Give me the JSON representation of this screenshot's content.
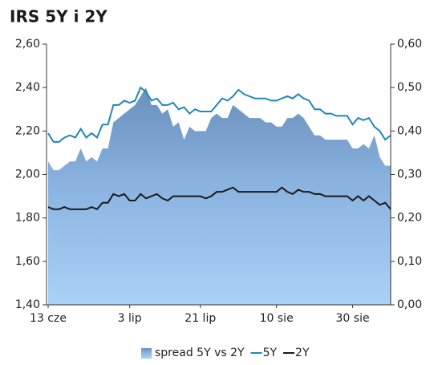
{
  "chart_data": {
    "type": "area-line",
    "title": "IRS 5Y i 2Y",
    "categories": [
      "13 cze",
      null,
      null,
      null,
      null,
      null,
      null,
      null,
      null,
      null,
      null,
      null,
      null,
      null,
      null,
      "3 lip",
      null,
      null,
      null,
      null,
      null,
      null,
      null,
      null,
      null,
      null,
      null,
      null,
      "21 lip",
      null,
      null,
      null,
      null,
      null,
      null,
      null,
      null,
      null,
      null,
      null,
      null,
      null,
      "10 sie",
      null,
      null,
      null,
      null,
      null,
      null,
      null,
      null,
      null,
      null,
      null,
      null,
      null,
      "30 sie",
      null,
      null,
      null,
      null,
      null,
      null,
      null
    ],
    "series": [
      {
        "name": "spread 5Y vs 2Y",
        "color": "#7096c2",
        "axis": "y2",
        "kind": "area",
        "values": [
          0.33,
          0.31,
          0.31,
          0.32,
          0.33,
          0.33,
          0.36,
          0.33,
          0.34,
          0.33,
          0.36,
          0.36,
          0.42,
          0.43,
          0.44,
          0.45,
          0.46,
          0.48,
          0.5,
          0.46,
          0.46,
          0.44,
          0.45,
          0.41,
          0.42,
          0.38,
          0.41,
          0.4,
          0.4,
          0.4,
          0.43,
          0.44,
          0.43,
          0.43,
          0.46,
          0.45,
          0.44,
          0.43,
          0.43,
          0.43,
          0.42,
          0.42,
          0.41,
          0.41,
          0.43,
          0.43,
          0.44,
          0.43,
          0.41,
          0.39,
          0.39,
          0.38,
          0.38,
          0.38,
          0.38,
          0.38,
          0.36,
          0.36,
          0.37,
          0.36,
          0.39,
          0.34,
          0.32,
          0.32
        ]
      },
      {
        "name": "5Y",
        "color": "#1f88b8",
        "kind": "line",
        "values": [
          2.19,
          2.15,
          2.15,
          2.17,
          2.18,
          2.17,
          2.21,
          2.17,
          2.19,
          2.17,
          2.23,
          2.23,
          2.32,
          2.32,
          2.34,
          2.33,
          2.34,
          2.4,
          2.38,
          2.34,
          2.35,
          2.32,
          2.32,
          2.33,
          2.3,
          2.31,
          2.28,
          2.3,
          2.29,
          2.29,
          2.29,
          2.32,
          2.35,
          2.34,
          2.36,
          2.39,
          2.37,
          2.36,
          2.35,
          2.35,
          2.35,
          2.34,
          2.34,
          2.35,
          2.36,
          2.35,
          2.37,
          2.35,
          2.34,
          2.3,
          2.3,
          2.28,
          2.28,
          2.27,
          2.27,
          2.27,
          2.23,
          2.26,
          2.25,
          2.26,
          2.22,
          2.2,
          2.16,
          2.18
        ]
      },
      {
        "name": "2Y",
        "color": "#1a1a1a",
        "kind": "line",
        "values": [
          1.85,
          1.84,
          1.84,
          1.85,
          1.84,
          1.84,
          1.84,
          1.84,
          1.85,
          1.84,
          1.87,
          1.87,
          1.91,
          1.9,
          1.91,
          1.88,
          1.88,
          1.91,
          1.89,
          1.9,
          1.91,
          1.89,
          1.88,
          1.9,
          1.9,
          1.9,
          1.9,
          1.9,
          1.9,
          1.89,
          1.9,
          1.92,
          1.92,
          1.93,
          1.94,
          1.92,
          1.92,
          1.92,
          1.92,
          1.92,
          1.92,
          1.92,
          1.92,
          1.94,
          1.92,
          1.91,
          1.93,
          1.92,
          1.92,
          1.91,
          1.91,
          1.9,
          1.9,
          1.9,
          1.9,
          1.9,
          1.88,
          1.9,
          1.88,
          1.9,
          1.88,
          1.86,
          1.87,
          1.84
        ]
      }
    ],
    "ylim": [
      1.4,
      2.6
    ],
    "yticks": [
      {
        "value": 1.4,
        "label": "1,40"
      },
      {
        "value": 1.6,
        "label": "1,60"
      },
      {
        "value": 1.8,
        "label": "1,80"
      },
      {
        "value": 2.0,
        "label": "2,00"
      },
      {
        "value": 2.2,
        "label": "2,20"
      },
      {
        "value": 2.4,
        "label": "2,40"
      },
      {
        "value": 2.6,
        "label": "2,60"
      }
    ],
    "y2lim": [
      0,
      0.6
    ],
    "y2ticks": [
      {
        "value": 0,
        "label": "0,00"
      },
      {
        "value": 0.1,
        "label": "0,10"
      },
      {
        "value": 0.2,
        "label": "0,20"
      },
      {
        "value": 0.3,
        "label": "0,30"
      },
      {
        "value": 0.4,
        "label": "0,40"
      },
      {
        "value": 0.5,
        "label": "0,50"
      },
      {
        "value": 0.6,
        "label": "0,60"
      }
    ],
    "grid": false,
    "legend": "bottom"
  }
}
